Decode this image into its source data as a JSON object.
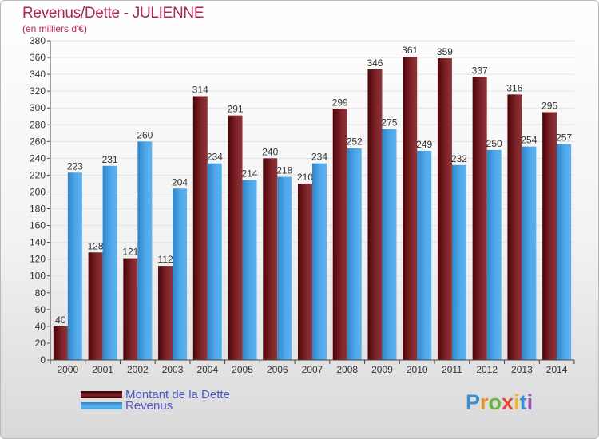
{
  "title": "Revenus/Dette - JULIENNE",
  "subtitle": "(en milliers d'€)",
  "logo": {
    "letters": [
      "P",
      "r",
      "o",
      "x",
      "i",
      "t",
      "i"
    ],
    "colors": [
      "#3c8fd3",
      "#e8902a",
      "#6cb33f",
      "#e2442f",
      "#f0b52c",
      "#3c8fd3",
      "#9c4fb0"
    ]
  },
  "chart_data": {
    "type": "bar",
    "categories": [
      "2000",
      "2001",
      "2002",
      "2003",
      "2004",
      "2005",
      "2006",
      "2007",
      "2008",
      "2009",
      "2010",
      "2011",
      "2012",
      "2013",
      "2014"
    ],
    "series": [
      {
        "name": "Montant de la Dette",
        "values": [
          40,
          128,
          121,
          112,
          314,
          291,
          240,
          210,
          299,
          346,
          361,
          359,
          337,
          316,
          295
        ],
        "color": "#6b1014"
      },
      {
        "name": "Revenus",
        "values": [
          223,
          231,
          260,
          204,
          234,
          214,
          218,
          234,
          252,
          275,
          249,
          232,
          250,
          254,
          257
        ],
        "color": "#3f9be0"
      }
    ],
    "ylim": [
      0,
      380
    ],
    "ytick_step": 20,
    "grid": true,
    "legend_position": "bottom-left"
  }
}
